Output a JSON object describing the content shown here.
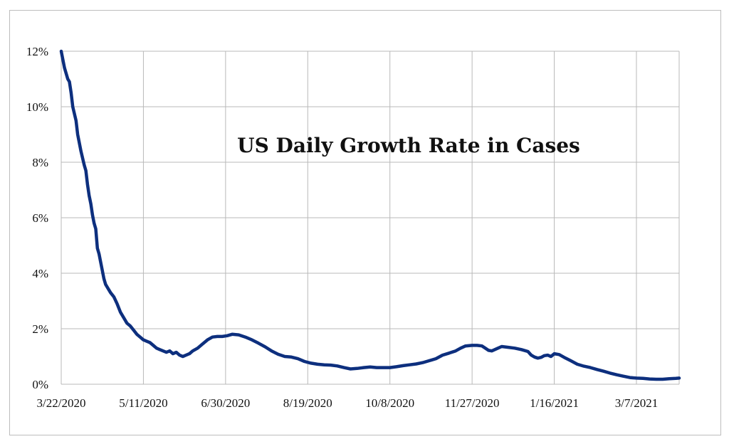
{
  "chart_data": {
    "type": "line",
    "title": "US Daily Growth Rate in Cases",
    "xlabel": "",
    "ylabel": "",
    "x_start_date": "3/22/2020",
    "x_end_day": 376,
    "x_ticks": [
      {
        "day": 0,
        "label": "3/22/2020"
      },
      {
        "day": 50,
        "label": "5/11/2020"
      },
      {
        "day": 100,
        "label": "6/30/2020"
      },
      {
        "day": 150,
        "label": "8/19/2020"
      },
      {
        "day": 200,
        "label": "10/8/2020"
      },
      {
        "day": 250,
        "label": "11/27/2020"
      },
      {
        "day": 300,
        "label": "1/16/2021"
      },
      {
        "day": 350,
        "label": "3/7/2021"
      }
    ],
    "ylim": [
      0,
      12
    ],
    "y_ticks": [
      {
        "value": 0,
        "label": "0%"
      },
      {
        "value": 2,
        "label": "2%"
      },
      {
        "value": 4,
        "label": "4%"
      },
      {
        "value": 6,
        "label": "6%"
      },
      {
        "value": 8,
        "label": "8%"
      },
      {
        "value": 10,
        "label": "10%"
      },
      {
        "value": 12,
        "label": "12%"
      }
    ],
    "grid": true,
    "series": [
      {
        "name": "US Daily Growth Rate in Cases",
        "color": "#0d2f7e",
        "points": [
          [
            0,
            12.0
          ],
          [
            2,
            11.4
          ],
          [
            4,
            11.0
          ],
          [
            5,
            10.9
          ],
          [
            6,
            10.5
          ],
          [
            7,
            10.0
          ],
          [
            9,
            9.5
          ],
          [
            10,
            9.0
          ],
          [
            11,
            8.7
          ],
          [
            12,
            8.4
          ],
          [
            14,
            7.9
          ],
          [
            15,
            7.7
          ],
          [
            16,
            7.2
          ],
          [
            17,
            6.8
          ],
          [
            18,
            6.5
          ],
          [
            19,
            6.1
          ],
          [
            20,
            5.8
          ],
          [
            21,
            5.6
          ],
          [
            22,
            4.9
          ],
          [
            23,
            4.7
          ],
          [
            24,
            4.4
          ],
          [
            25,
            4.1
          ],
          [
            26,
            3.8
          ],
          [
            27,
            3.6
          ],
          [
            28,
            3.5
          ],
          [
            30,
            3.3
          ],
          [
            32,
            3.15
          ],
          [
            34,
            2.9
          ],
          [
            36,
            2.6
          ],
          [
            38,
            2.4
          ],
          [
            40,
            2.2
          ],
          [
            42,
            2.1
          ],
          [
            44,
            1.95
          ],
          [
            46,
            1.8
          ],
          [
            48,
            1.7
          ],
          [
            50,
            1.6
          ],
          [
            52,
            1.55
          ],
          [
            54,
            1.5
          ],
          [
            56,
            1.4
          ],
          [
            58,
            1.3
          ],
          [
            60,
            1.25
          ],
          [
            62,
            1.2
          ],
          [
            64,
            1.15
          ],
          [
            66,
            1.2
          ],
          [
            68,
            1.1
          ],
          [
            70,
            1.15
          ],
          [
            72,
            1.05
          ],
          [
            74,
            1.0
          ],
          [
            76,
            1.05
          ],
          [
            78,
            1.1
          ],
          [
            80,
            1.2
          ],
          [
            83,
            1.3
          ],
          [
            86,
            1.45
          ],
          [
            89,
            1.6
          ],
          [
            92,
            1.7
          ],
          [
            95,
            1.72
          ],
          [
            98,
            1.72
          ],
          [
            101,
            1.75
          ],
          [
            104,
            1.8
          ],
          [
            108,
            1.78
          ],
          [
            112,
            1.7
          ],
          [
            116,
            1.6
          ],
          [
            120,
            1.48
          ],
          [
            124,
            1.35
          ],
          [
            128,
            1.2
          ],
          [
            132,
            1.08
          ],
          [
            136,
            1.0
          ],
          [
            140,
            0.98
          ],
          [
            144,
            0.92
          ],
          [
            148,
            0.82
          ],
          [
            152,
            0.76
          ],
          [
            156,
            0.72
          ],
          [
            160,
            0.7
          ],
          [
            164,
            0.69
          ],
          [
            168,
            0.66
          ],
          [
            172,
            0.6
          ],
          [
            176,
            0.55
          ],
          [
            180,
            0.57
          ],
          [
            184,
            0.6
          ],
          [
            188,
            0.62
          ],
          [
            192,
            0.6
          ],
          [
            196,
            0.6
          ],
          [
            200,
            0.6
          ],
          [
            204,
            0.63
          ],
          [
            208,
            0.67
          ],
          [
            212,
            0.7
          ],
          [
            216,
            0.73
          ],
          [
            220,
            0.78
          ],
          [
            224,
            0.85
          ],
          [
            228,
            0.92
          ],
          [
            232,
            1.05
          ],
          [
            236,
            1.12
          ],
          [
            240,
            1.2
          ],
          [
            243,
            1.3
          ],
          [
            246,
            1.38
          ],
          [
            250,
            1.4
          ],
          [
            253,
            1.4
          ],
          [
            256,
            1.38
          ],
          [
            258,
            1.3
          ],
          [
            260,
            1.22
          ],
          [
            262,
            1.2
          ],
          [
            265,
            1.28
          ],
          [
            268,
            1.36
          ],
          [
            272,
            1.33
          ],
          [
            276,
            1.3
          ],
          [
            280,
            1.25
          ],
          [
            284,
            1.18
          ],
          [
            286,
            1.05
          ],
          [
            288,
            0.98
          ],
          [
            290,
            0.94
          ],
          [
            292,
            0.97
          ],
          [
            294,
            1.03
          ],
          [
            296,
            1.05
          ],
          [
            298,
            1.0
          ],
          [
            300,
            1.1
          ],
          [
            303,
            1.07
          ],
          [
            306,
            0.97
          ],
          [
            310,
            0.85
          ],
          [
            314,
            0.72
          ],
          [
            318,
            0.65
          ],
          [
            322,
            0.6
          ],
          [
            326,
            0.53
          ],
          [
            330,
            0.47
          ],
          [
            334,
            0.4
          ],
          [
            338,
            0.34
          ],
          [
            342,
            0.29
          ],
          [
            346,
            0.24
          ],
          [
            350,
            0.22
          ],
          [
            354,
            0.21
          ],
          [
            358,
            0.19
          ],
          [
            362,
            0.18
          ],
          [
            366,
            0.18
          ],
          [
            370,
            0.2
          ],
          [
            374,
            0.21
          ],
          [
            376,
            0.22
          ]
        ]
      }
    ]
  }
}
